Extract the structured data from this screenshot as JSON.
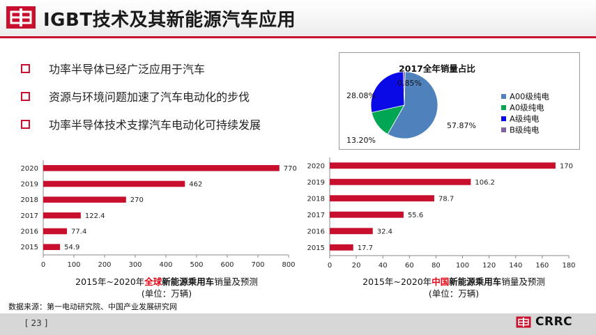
{
  "header": {
    "title": "IGBT技术及其新能源汽车应用"
  },
  "bullets": [
    "功率半导体已经广泛应用于汽车",
    "资源与环境问题加速了汽车电动化的步伐",
    "功率半导体技术支撑汽车电动化可持续发展"
  ],
  "chart_data": [
    {
      "type": "bar",
      "orientation": "horizontal",
      "categories": [
        "2015",
        "2016",
        "2017",
        "2018",
        "2019",
        "2020"
      ],
      "values": [
        54.9,
        77.4,
        122.4,
        270,
        462,
        770
      ],
      "data_labels": [
        "54.9",
        "77.4",
        "122.4",
        "270",
        "462",
        "770"
      ],
      "xlim": [
        0,
        800
      ],
      "x_ticks": [
        "0",
        "100",
        "200",
        "300",
        "400",
        "500",
        "600",
        "700",
        "800"
      ],
      "grid": false,
      "color": "#c8102e",
      "caption": {
        "pre": "2015年~2020年",
        "highlight": "全球",
        "bold": "新能源乘用车",
        "post": "销量及预测",
        "unit": "(单位：万辆)"
      }
    },
    {
      "type": "bar",
      "orientation": "horizontal",
      "categories": [
        "2015",
        "2016",
        "2017",
        "2018",
        "2019",
        "2020"
      ],
      "values": [
        17.7,
        32.4,
        55.6,
        78.7,
        106.2,
        170
      ],
      "data_labels": [
        "17.7",
        "32.4",
        "55.6",
        "78.7",
        "106.2",
        "170"
      ],
      "xlim": [
        0,
        180
      ],
      "x_ticks": [
        "0",
        "20",
        "40",
        "60",
        "80",
        "100",
        "120",
        "140",
        "160",
        "180"
      ],
      "grid": false,
      "color": "#c8102e",
      "caption": {
        "pre": "2015年~2020年",
        "highlight": "中国",
        "bold": "新能源乘用车",
        "post": "销量及预测",
        "unit": "(单位：万辆)"
      }
    },
    {
      "type": "pie",
      "title": "2017全年销量占比",
      "slices": [
        {
          "label": "A00级纯电",
          "value": 57.87,
          "data_label": "57.87%",
          "color": "#4f81bd"
        },
        {
          "label": "A0级纯电",
          "value": 13.2,
          "data_label": "13.20%",
          "color": "#00a651"
        },
        {
          "label": "A级纯电",
          "value": 28.08,
          "data_label": "28.08%",
          "color": "#0a0ae6"
        },
        {
          "label": "B级纯电",
          "value": 0.85,
          "data_label": "0.85%",
          "color": "#8064a2"
        }
      ],
      "legend_position": "right"
    }
  ],
  "footer": {
    "source": "数据来源：第一电动研究院、中国产业发展研究网",
    "page": "[ 23 ]",
    "brand": "CRRC"
  },
  "colors": {
    "accent": "#c8102e",
    "footer_bg": "#d7d7d7"
  },
  "icons": {
    "logo": "crrc-logo-icon",
    "bullet": "square-bullet-icon"
  }
}
